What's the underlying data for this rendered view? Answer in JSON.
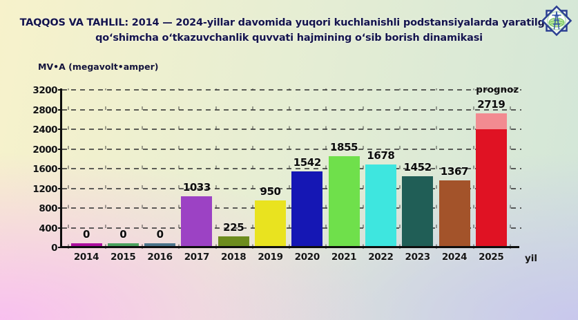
{
  "header": {
    "title_line1": "TAQQOS VA TAHLIL: 2014 — 2024-yillar davomida yuqori kuchlanishli podstansiyalarda yaratilgan",
    "title_line2": "qoʻshimcha oʻtkazuvchanlik quvvati hajmining oʻsib borish dinamikasi"
  },
  "unit_label": "MV•A (megavolt•amper)",
  "logo": {
    "name": "power-grid-company-emblem",
    "outline_color": "#2b3f92",
    "globe_color": "#6cc25a"
  },
  "chart_data": {
    "type": "bar",
    "title": "TAQQOS VA TAHLIL: 2014 — 2024-yillar davomida yuqori kuchlanishli podstansiyalarda yaratilgan qoʻshimcha oʻtkazuvchanlik quvvati hajmining oʻsib borish dinamikasi",
    "ylabel": "MV•A (megavolt•amper)",
    "xlabel": "yil",
    "x_axis_suffix": "yil",
    "ylim": [
      0,
      3200
    ],
    "yticks": [
      0,
      400,
      800,
      1200,
      1600,
      2000,
      2400,
      2800,
      3200
    ],
    "grid": "dashed",
    "legend": "none",
    "categories": [
      "2014",
      "2015",
      "2016",
      "2017",
      "2018",
      "2019",
      "2020",
      "2021",
      "2022",
      "2023",
      "2024",
      "2025"
    ],
    "values": [
      0,
      0,
      0,
      1033,
      225,
      950,
      1542,
      1855,
      1678,
      1452,
      1367,
      2719
    ],
    "value_labels": [
      "0",
      "0",
      "0",
      "1033",
      "225",
      "950",
      "1542",
      "1855",
      "1678",
      "1452",
      "1367",
      "2719"
    ],
    "bar_colors": [
      "#ad0f9e",
      "#4ba25e",
      "#4c758c",
      "#9c42c4",
      "#6d8c1d",
      "#e9e31f",
      "#1517b4",
      "#6fe04b",
      "#3ee6df",
      "#205e56",
      "#a3532a",
      "#e01223"
    ],
    "forecast": {
      "index": 11,
      "label": "prognoz",
      "segment_color": "#f28b91",
      "segment_from": 2400
    }
  }
}
